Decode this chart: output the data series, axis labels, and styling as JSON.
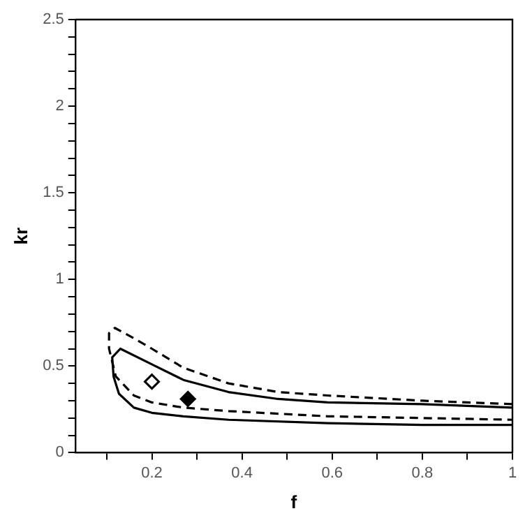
{
  "chart_data": {
    "type": "line",
    "xlabel": "f",
    "ylabel": "kr",
    "xlim": [
      0.03,
      1
    ],
    "ylim": [
      0,
      2.5
    ],
    "xticks": [
      {
        "value": 0.1,
        "label": null
      },
      0.2,
      {
        "value": 0.3,
        "label": null
      },
      0.4,
      {
        "value": 0.5,
        "label": null
      },
      0.6,
      {
        "value": 0.7,
        "label": null
      },
      0.8,
      {
        "value": 0.9,
        "label": null
      },
      1
    ],
    "yticks": [
      0,
      {
        "value": 0.1,
        "label": null
      },
      {
        "value": 0.2,
        "label": null
      },
      {
        "value": 0.3,
        "label": null
      },
      {
        "value": 0.4,
        "label": null
      },
      0.5,
      {
        "value": 0.6,
        "label": null
      },
      {
        "value": 0.7,
        "label": null
      },
      {
        "value": 0.8,
        "label": null
      },
      {
        "value": 0.9,
        "label": null
      },
      1,
      {
        "value": 1.1,
        "label": null
      },
      {
        "value": 1.2,
        "label": null
      },
      {
        "value": 1.3,
        "label": null
      },
      {
        "value": 1.4,
        "label": null
      },
      1.5,
      {
        "value": 1.6,
        "label": null
      },
      {
        "value": 1.7,
        "label": null
      },
      {
        "value": 1.8,
        "label": null
      },
      {
        "value": 1.9,
        "label": null
      },
      2,
      {
        "value": 2.1,
        "label": null
      },
      {
        "value": 2.2,
        "label": null
      },
      {
        "value": 2.3,
        "label": null
      },
      {
        "value": 2.4,
        "label": null
      },
      2.5
    ],
    "grid": false,
    "legend": false,
    "marker": "none",
    "series": [
      {
        "line_style": "solid",
        "color": "#000000",
        "x": [
          1.0,
          0.8,
          0.59,
          0.48,
          0.37,
          0.27,
          0.2,
          0.13,
          0.112,
          0.115,
          0.127,
          0.16,
          0.2,
          0.27,
          0.37,
          0.59,
          0.8,
          1.0
        ],
        "values": [
          0.26,
          0.28,
          0.29,
          0.31,
          0.35,
          0.42,
          0.51,
          0.6,
          0.55,
          0.44,
          0.34,
          0.26,
          0.23,
          0.21,
          0.19,
          0.17,
          0.16,
          0.16
        ]
      },
      {
        "line_style": "dashed",
        "color": "#000000",
        "x": [
          1.0,
          0.8,
          0.59,
          0.48,
          0.37,
          0.27,
          0.2,
          0.16,
          0.118,
          0.105,
          0.105,
          0.12,
          0.16,
          0.2,
          0.27,
          0.37,
          0.59,
          0.8,
          1.0
        ],
        "values": [
          0.28,
          0.3,
          0.33,
          0.35,
          0.4,
          0.49,
          0.6,
          0.66,
          0.72,
          0.69,
          0.6,
          0.44,
          0.33,
          0.29,
          0.26,
          0.24,
          0.21,
          0.2,
          0.19
        ]
      },
      {
        "type": "scatter",
        "marker": "diamond",
        "color": "#ffffff",
        "x": [
          0.2
        ],
        "values": [
          0.41
        ]
      },
      {
        "type": "scatter",
        "marker": "diamond",
        "color": "#000000",
        "x": [
          0.28
        ],
        "values": [
          0.31
        ]
      }
    ]
  }
}
